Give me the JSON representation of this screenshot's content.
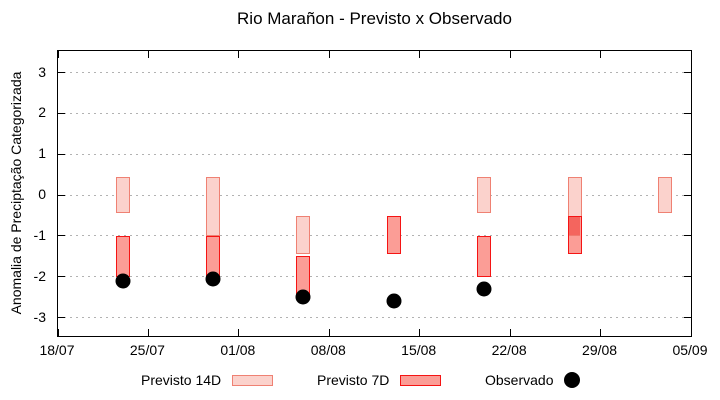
{
  "header": {
    "title": "Rio Marañon - Previsto x Observado"
  },
  "legend": {
    "items": [
      {
        "label": "Previsto 14D"
      },
      {
        "label": "Previsto 7D"
      },
      {
        "label": "Observado"
      }
    ]
  },
  "chart_data": {
    "type": "bar",
    "title": "Rio Marañon - Previsto x Observado",
    "xlabel": "",
    "ylabel": "Anomalia de Preciptação Categorizada",
    "ylim": [
      -3.5,
      3.53
    ],
    "grid": "dashed-horizontal",
    "legend_position": "bottom",
    "y_ticks": [
      3,
      2,
      1,
      0,
      -1,
      -2,
      -3
    ],
    "x_axis": {
      "range_days": [
        0,
        49
      ],
      "ticks": [
        {
          "label": "18/07",
          "day": 0
        },
        {
          "label": "25/07",
          "day": 7
        },
        {
          "label": "01/08",
          "day": 14
        },
        {
          "label": "08/08",
          "day": 21
        },
        {
          "label": "15/08",
          "day": 28
        },
        {
          "label": "22/08",
          "day": 35
        },
        {
          "label": "29/08",
          "day": 42
        },
        {
          "label": "05/09",
          "day": 49
        }
      ]
    },
    "series": [
      {
        "name": "Previsto 14D",
        "type": "bar-range",
        "fill": "#fbd2cc",
        "border": "#ef8173",
        "bars": [
          {
            "date": "23/07",
            "day": 5,
            "from": -0.45,
            "to": 0.45
          },
          {
            "date": "30/07",
            "day": 12,
            "from": -1.0,
            "to": 0.45
          },
          {
            "date": "06/08",
            "day": 19,
            "from": -1.45,
            "to": -0.5
          },
          {
            "date": "20/08",
            "day": 33,
            "from": -0.45,
            "to": 0.45
          },
          {
            "date": "27/08",
            "day": 40,
            "from": -1.0,
            "to": 0.45
          },
          {
            "date": "03/09",
            "day": 47,
            "from": -0.45,
            "to": 0.45
          }
        ]
      },
      {
        "name": "Previsto 7D",
        "type": "bar-range",
        "fill": "#fb9d96",
        "border": "#f51414",
        "overlap_fill": "#f4655e",
        "bars": [
          {
            "date": "23/07",
            "day": 5,
            "from": -2.0,
            "to": -1.0
          },
          {
            "date": "30/07",
            "day": 12,
            "from": -2.0,
            "to": -1.0
          },
          {
            "date": "06/08",
            "day": 19,
            "from": -2.45,
            "to": -1.5
          },
          {
            "date": "13/08",
            "day": 26,
            "from": -1.45,
            "to": -0.5
          },
          {
            "date": "20/08",
            "day": 33,
            "from": -2.0,
            "to": -1.0
          },
          {
            "date": "27/08",
            "day": 40,
            "from": -1.45,
            "to": -0.5
          }
        ]
      },
      {
        "name": "Observado",
        "type": "scatter",
        "color": "#000000",
        "points": [
          {
            "date": "23/07",
            "day": 5,
            "value": -2.1
          },
          {
            "date": "30/07",
            "day": 12,
            "value": -2.05
          },
          {
            "date": "06/08",
            "day": 19,
            "value": -2.5
          },
          {
            "date": "13/08",
            "day": 26,
            "value": -2.6
          },
          {
            "date": "20/08",
            "day": 33,
            "value": -2.3
          }
        ]
      }
    ]
  }
}
